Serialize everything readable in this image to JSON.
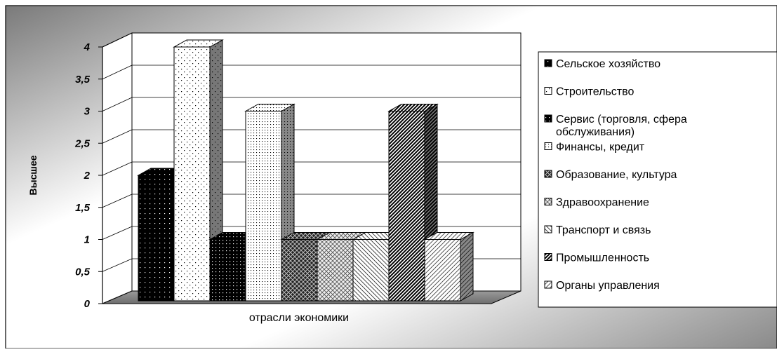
{
  "chart_data": {
    "type": "bar",
    "title": "",
    "xlabel": "отрасли экономики",
    "ylabel": "Высшее",
    "ylim": [
      0,
      4
    ],
    "ytick_labels": [
      "0",
      "0,5",
      "1",
      "1,5",
      "2",
      "2,5",
      "3",
      "3,5",
      "4"
    ],
    "grid": true,
    "legend_position": "right",
    "three_d": true,
    "series": [
      {
        "name": "Сельское хозяйство",
        "value": 2,
        "pattern": "dots-dark"
      },
      {
        "name": "Строительство",
        "value": 4,
        "pattern": "dots-light"
      },
      {
        "name": "Сервис (торговля, сфера обслуживания)",
        "value": 1,
        "pattern": "dots-dense-dark"
      },
      {
        "name": "Финансы, кредит",
        "value": 3,
        "pattern": "dots-fine"
      },
      {
        "name": "Образование, культура",
        "value": 1,
        "pattern": "crosshatch-dark"
      },
      {
        "name": "Здравоохранение",
        "value": 1,
        "pattern": "crosshatch-light"
      },
      {
        "name": "Транспорт  и связь",
        "value": 1,
        "pattern": "diag-back-light"
      },
      {
        "name": "Промышленность",
        "value": 3,
        "pattern": "diag-dense-dark"
      },
      {
        "name": "Органы управления",
        "value": 1,
        "pattern": "diag-light"
      }
    ]
  }
}
